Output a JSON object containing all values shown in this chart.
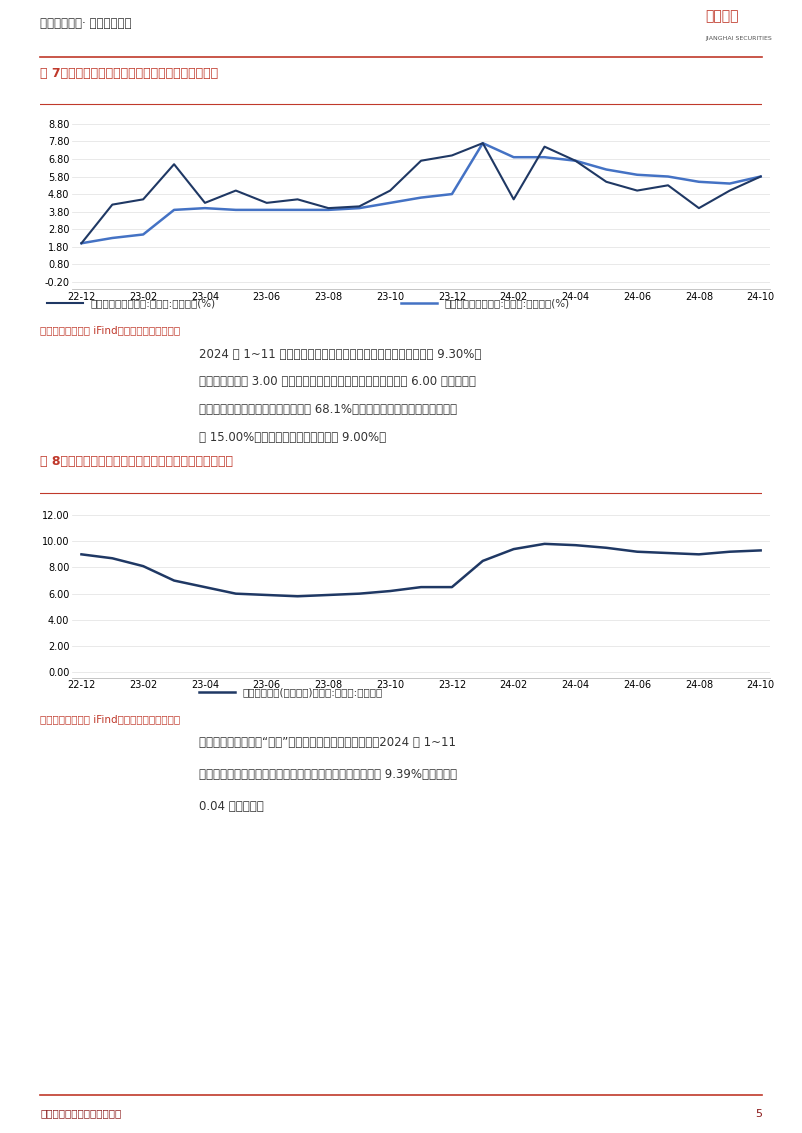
{
  "page_bg": "#ffffff",
  "header_text": "证券研究报告· 行业研究报告",
  "footer_text": "敬请参阅最后一页之免责条款",
  "footer_page": "5",
  "red_color": "#C0392B",
  "dark_navy": "#1F3864",
  "mid_blue": "#4472C4",
  "text_color": "#333333",
  "chart1_title": "图 7、中国制造业规模以上工业增加值同比变动情况",
  "chart1_yticks": [
    -0.2,
    0.8,
    1.8,
    2.8,
    3.8,
    4.8,
    5.8,
    6.8,
    7.8,
    8.8
  ],
  "chart1_ylim": [
    -0.6,
    9.4
  ],
  "chart1_xticks": [
    "22-12",
    "23-02",
    "23-04",
    "23-06",
    "23-08",
    "23-10",
    "23-12",
    "24-02",
    "24-04",
    "24-06",
    "24-08",
    "24-10"
  ],
  "chart1_line1_label": "规模以上工业增加值:制造业:当月同比(%)",
  "chart1_line2_label": "规模以上工业增加值:制造业:累计同比(%)",
  "chart1_line1_y": [
    2.0,
    4.2,
    4.5,
    6.5,
    4.3,
    5.0,
    4.3,
    4.5,
    4.0,
    4.1,
    5.0,
    6.7,
    7.0,
    7.7,
    4.5,
    7.5,
    6.7,
    5.5,
    5.0,
    5.3,
    4.0,
    5.0,
    5.8
  ],
  "chart1_line2_y": [
    2.0,
    2.3,
    2.5,
    3.9,
    4.0,
    3.9,
    3.9,
    3.9,
    3.9,
    4.0,
    4.3,
    4.6,
    4.8,
    7.7,
    6.9,
    6.9,
    6.7,
    6.2,
    5.9,
    5.8,
    5.5,
    5.4,
    5.8
  ],
  "source_text": "资料来源：同花顺 iFind，江海证券研究发展部",
  "para1_line1": "2024 年 1~11 月，国内制造业固定资产投资完成额累计同比录得 9.30%，",
  "para1_line2": "同比基期数据高 3.00 个百分点，较我国全部投资的累计增速高 6.00 个百分点，",
  "para1_line3": "对我国全部投资增长的贡献率已达到 68.1%，其中消费品制造行业累计同比增",
  "para1_line4": "长 15.00%，装备制造业累计同比增长 9.00%。",
  "chart2_title": "图 8、中国制造业固定资产投资完成额累计同比变动情况",
  "chart2_yticks": [
    0.0,
    2.0,
    4.0,
    6.0,
    8.0,
    10.0,
    12.0
  ],
  "chart2_ylim": [
    -0.4,
    13.0
  ],
  "chart2_xticks": [
    "22-12",
    "23-02",
    "23-04",
    "23-06",
    "23-08",
    "23-10",
    "23-12",
    "24-02",
    "24-04",
    "24-06",
    "24-08",
    "24-10"
  ],
  "chart2_line_label": "固定资产投资(不含农户)完成额:制造业:累计同比",
  "chart2_line_y": [
    9.0,
    8.7,
    8.1,
    7.0,
    6.5,
    6.0,
    5.9,
    5.8,
    5.9,
    6.0,
    6.2,
    6.5,
    6.5,
    8.5,
    9.4,
    9.8,
    9.7,
    9.5,
    9.2,
    9.1,
    9.0,
    9.2,
    9.3
  ],
  "para2_line1": "基础设施方面，受到“两重”建设工作的持续推进的影响，2024 年 1~11",
  "para2_line2": "月，我国用在基础建设方面的固定资产投资累计同比增速为 9.39%，环比提升",
  "para2_line3": "0.04 个百分点。"
}
